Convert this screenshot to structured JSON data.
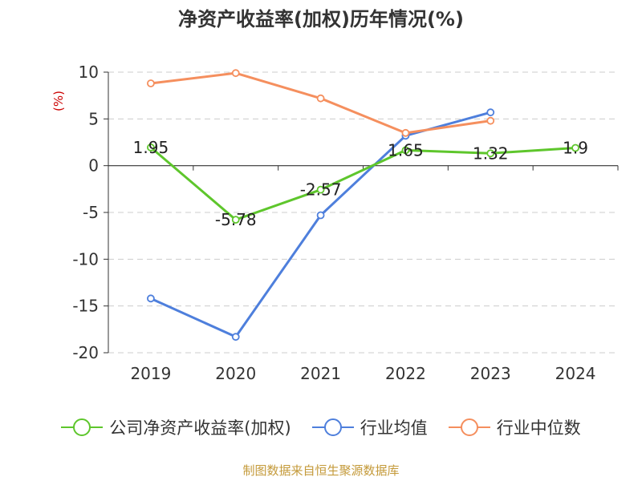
{
  "chart_data": {
    "type": "line",
    "title": "净资产收益率(加权)历年情况(%)",
    "ylabel": "(%)",
    "categories": [
      "2019",
      "2020",
      "2021",
      "2022",
      "2023",
      "2024"
    ],
    "ylim": [
      -20,
      10
    ],
    "yticks": [
      "10",
      "5",
      "0",
      "-5",
      "-10",
      "-15",
      "-20"
    ],
    "grid": true,
    "legend_position": "bottom",
    "series": [
      {
        "name": "公司净资产收益率(加权)",
        "color": "#5ec62c",
        "values": [
          1.95,
          -5.78,
          -2.57,
          1.65,
          1.32,
          1.9
        ],
        "labels": [
          "1.95",
          "-5.78",
          "-2.57",
          "1.65",
          "1.32",
          "1.9"
        ]
      },
      {
        "name": "行业均值",
        "color": "#4e7fdc",
        "values": [
          -14.2,
          -18.3,
          -5.3,
          3.2,
          5.7,
          null
        ]
      },
      {
        "name": "行业中位数",
        "color": "#f58f5e",
        "values": [
          8.8,
          9.9,
          7.2,
          3.5,
          4.8,
          null
        ]
      }
    ],
    "source": "制图数据来自恒生聚源数据库"
  }
}
